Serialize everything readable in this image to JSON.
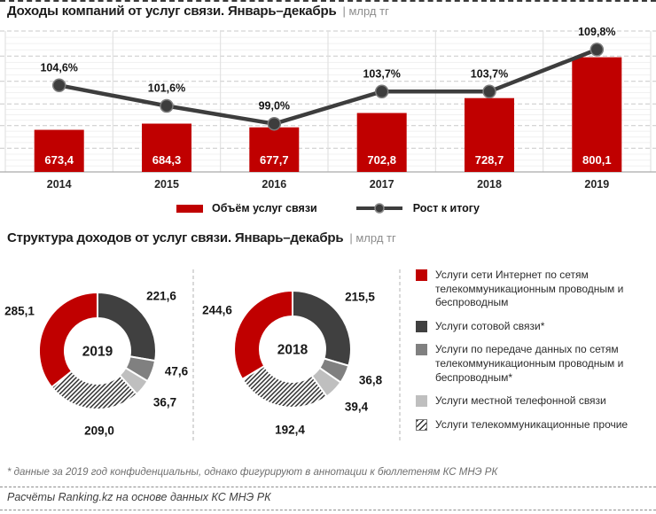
{
  "sections": {
    "revenue_title": "Доходы компаний от услуг связи. Январь–декабрь",
    "revenue_unit": "| млрд тг",
    "structure_title": "Структура доходов от услуг связи. Январь–декабрь",
    "structure_unit": "| млрд тг"
  },
  "footnote": "* данные за 2019 год конфиденциальны, однако фигурируют в аннотации к бюллетеням КС МНЭ РК",
  "source": "Расчёты Ranking.kz на основе данных КС МНЭ РК",
  "colors": {
    "accent_red": "#c00000",
    "dark_gray": "#404040",
    "mid_gray": "#808080",
    "light_gray": "#bfbfbf",
    "grid_major": "#c9c9c9",
    "grid_minor": "#f1f1f1",
    "axis": "#ababab"
  },
  "chart_data": [
    {
      "type": "bar",
      "title": "Доходы компаний от услуг связи. Январь–декабрь, млрд тг",
      "categories": [
        "2014",
        "2015",
        "2016",
        "2017",
        "2018",
        "2019"
      ],
      "series": [
        {
          "name": "Объём услуг связи",
          "type": "bar",
          "color": "#c00000",
          "values": [
            673.4,
            684.3,
            677.7,
            702.8,
            728.7,
            800.1
          ]
        },
        {
          "name": "Рост к итогу",
          "type": "line",
          "color": "#3d3d3d",
          "values": [
            104.6,
            101.6,
            99.0,
            103.7,
            103.7,
            109.8
          ],
          "unit": "%"
        }
      ],
      "bar_ylim": [
        600,
        845.8
      ],
      "line_ylim": [
        92,
        112.5
      ],
      "grid": true,
      "legend_position": "bottom"
    },
    {
      "type": "pie",
      "variant": "donut",
      "title": "Структура доходов от услуг связи. Январь–декабрь, млрд тг",
      "slices": [
        "Услуги сети Интернет по сетям телекоммуникационным проводным и беспроводным",
        "Услуги сотовой связи*",
        "Услуги по передаче данных по сетям телекоммуникационным проводным и беспроводным*",
        "Услуги местной телефонной связи",
        "Услуги телекоммуникационные прочие"
      ],
      "colors": [
        "#c00000",
        "#404040",
        "#808080",
        "#bfbfbf",
        "hatch"
      ],
      "years": [
        {
          "label": "2019",
          "values": [
            285.1,
            221.6,
            47.6,
            36.7,
            209.0
          ]
        },
        {
          "label": "2018",
          "values": [
            244.6,
            215.5,
            36.8,
            39.4,
            192.4
          ]
        }
      ],
      "legend_position": "right"
    }
  ]
}
